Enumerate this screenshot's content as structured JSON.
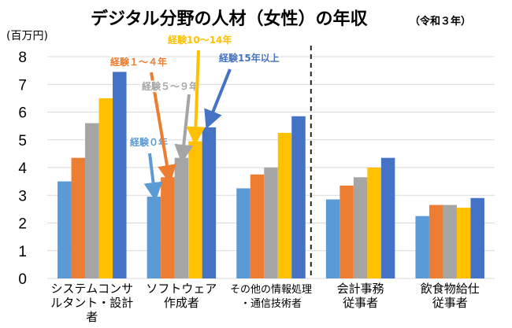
{
  "chart_data": {
    "type": "bar",
    "title": "デジタル分野の人材（女性）の年収",
    "subtitle": "（令和３年）",
    "ylabel": "(百万円)",
    "ylim": [
      0,
      8
    ],
    "yticks": [
      "0",
      "1",
      "2",
      "3",
      "4",
      "5",
      "6",
      "7",
      "8"
    ],
    "grid": true,
    "categories": [
      [
        "システムコンサ",
        "ルタント・設計",
        "者"
      ],
      [
        "ソフトウェア",
        "作成者"
      ],
      [
        "その他の情報処理",
        "・通信技術者"
      ],
      [
        "会計事務",
        "従事者"
      ],
      [
        "飲食物給仕",
        "従事者"
      ]
    ],
    "series": [
      {
        "name": "経験０年",
        "color": "#5b9bd5",
        "values": [
          3.5,
          2.95,
          3.25,
          2.85,
          2.25
        ]
      },
      {
        "name": "経験１～４年",
        "color": "#ed7d31",
        "values": [
          4.35,
          3.65,
          3.75,
          3.35,
          2.65
        ]
      },
      {
        "name": "経験５～９年",
        "color": "#a5a5a5",
        "values": [
          5.6,
          4.35,
          4.0,
          3.65,
          2.65
        ]
      },
      {
        "name": "経験10～14年",
        "color": "#ffc000",
        "values": [
          6.5,
          4.95,
          5.25,
          4.0,
          2.55
        ]
      },
      {
        "name": "経験15年以上",
        "color": "#4472c4",
        "values": [
          7.45,
          5.45,
          5.85,
          4.35,
          2.9
        ]
      }
    ],
    "divider_after_category": 2
  }
}
